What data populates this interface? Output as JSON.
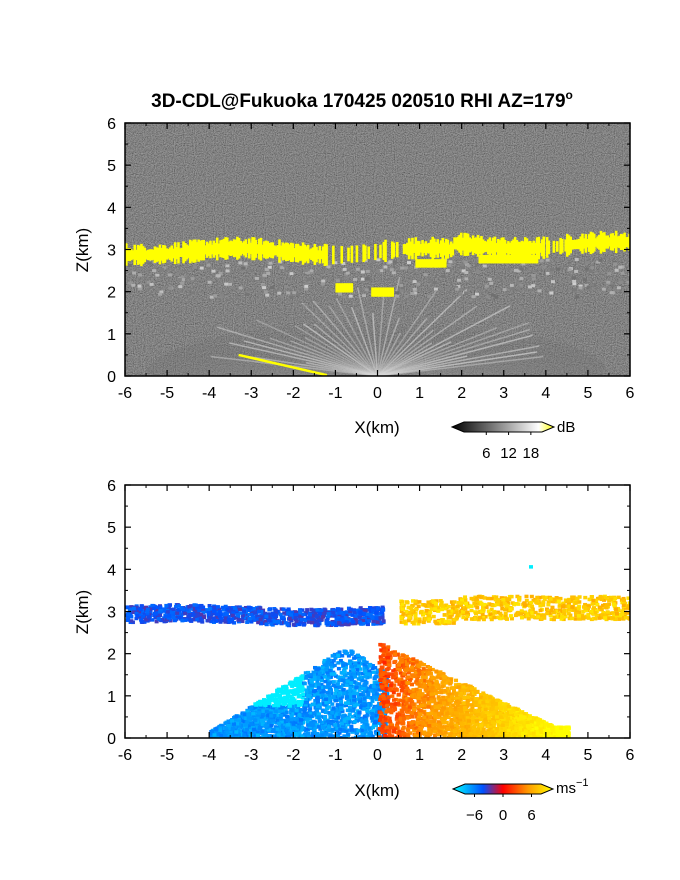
{
  "title": "3D-CDL@Fukuoka 170425 020510 RHI AZ=179",
  "title_sup": "o",
  "chart_data": [
    {
      "type": "heatmap",
      "name": "reflectivity",
      "xlabel": "X(km)",
      "ylabel": "Z(km)",
      "xlim": [
        -6,
        6
      ],
      "ylim": [
        0,
        6
      ],
      "xticks": [
        "-6",
        "-5",
        "-4",
        "-3",
        "-2",
        "-1",
        "0",
        "1",
        "2",
        "3",
        "4",
        "5",
        "6"
      ],
      "yticks": [
        "0",
        "1",
        "2",
        "3",
        "4",
        "5",
        "6"
      ],
      "grid": false,
      "colorbar": {
        "unit": "dB",
        "ticks": [
          "6",
          "12",
          "18"
        ],
        "range": [
          0,
          21
        ],
        "colors": [
          "#000000",
          "#ffffff",
          "#ffff00"
        ]
      },
      "features": [
        {
          "label": "cloud layer (yellow, >18 dB)",
          "z_km": [
            2.75,
            3.25
          ],
          "x_km": [
            -6,
            6
          ]
        },
        {
          "label": "scattered echoes",
          "z_km": [
            1.8,
            2.2
          ],
          "x_km": [
            -1.0,
            0.5
          ]
        },
        {
          "label": "aerosol / clutter fan (grey)",
          "z_km": [
            0,
            2.2
          ],
          "x_km": [
            -6,
            6
          ]
        }
      ]
    },
    {
      "type": "heatmap",
      "name": "doppler velocity",
      "xlabel": "X(km)",
      "ylabel": "Z(km)",
      "xlim": [
        -6,
        6
      ],
      "ylim": [
        0,
        6
      ],
      "xticks": [
        "-6",
        "-5",
        "-4",
        "-3",
        "-2",
        "-1",
        "0",
        "1",
        "2",
        "3",
        "4",
        "5",
        "6"
      ],
      "yticks": [
        "0",
        "1",
        "2",
        "3",
        "4",
        "5",
        "6"
      ],
      "grid": false,
      "colorbar": {
        "unit": "ms",
        "unit_sup": "−1",
        "ticks": [
          "−6",
          "0",
          "6"
        ],
        "range": [
          -8,
          8
        ],
        "colors": [
          "#00ffff",
          "#0050ff",
          "#ff0000",
          "#ff9900",
          "#ffff00"
        ]
      },
      "features": [
        {
          "label": "negative velocity layer",
          "z_km": [
            2.7,
            3.2
          ],
          "x_km": [
            -6,
            0
          ]
        },
        {
          "label": "positive velocity layer",
          "z_km": [
            2.7,
            3.3
          ],
          "x_km": [
            0.5,
            6
          ]
        },
        {
          "label": "low-level outflow negative",
          "z_km": [
            0,
            2.2
          ],
          "x_km": [
            -4,
            0
          ]
        },
        {
          "label": "low-level outflow positive",
          "z_km": [
            0,
            2.2
          ],
          "x_km": [
            0,
            4.5
          ]
        }
      ]
    }
  ]
}
